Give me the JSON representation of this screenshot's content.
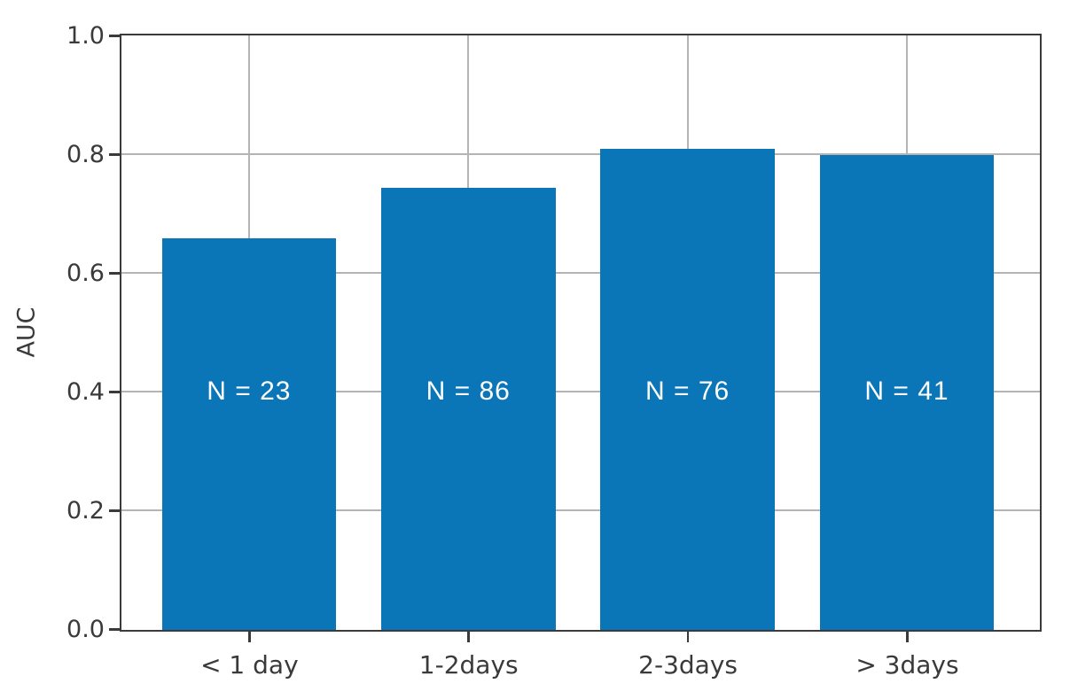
{
  "chart_data": {
    "type": "bar",
    "title": "",
    "xlabel": "",
    "ylabel": "AUC",
    "categories": [
      "< 1 day",
      "1-2days",
      "2-3days",
      "> 3days"
    ],
    "values": [
      0.66,
      0.745,
      0.81,
      0.8
    ],
    "bar_labels": [
      "N = 23",
      "N = 86",
      "N = 76",
      "N = 41"
    ],
    "bar_label_y_fraction": 0.4,
    "yticks": [
      0.0,
      0.2,
      0.4,
      0.6,
      0.8,
      1.0
    ],
    "ylim": [
      0.0,
      1.0
    ],
    "grid": true,
    "legend": null,
    "bar_color": "#0a76b8",
    "bar_label_color": "#ffffff",
    "axis_text_color": "#3a3a3a",
    "grid_color": "#b4b4b4"
  }
}
